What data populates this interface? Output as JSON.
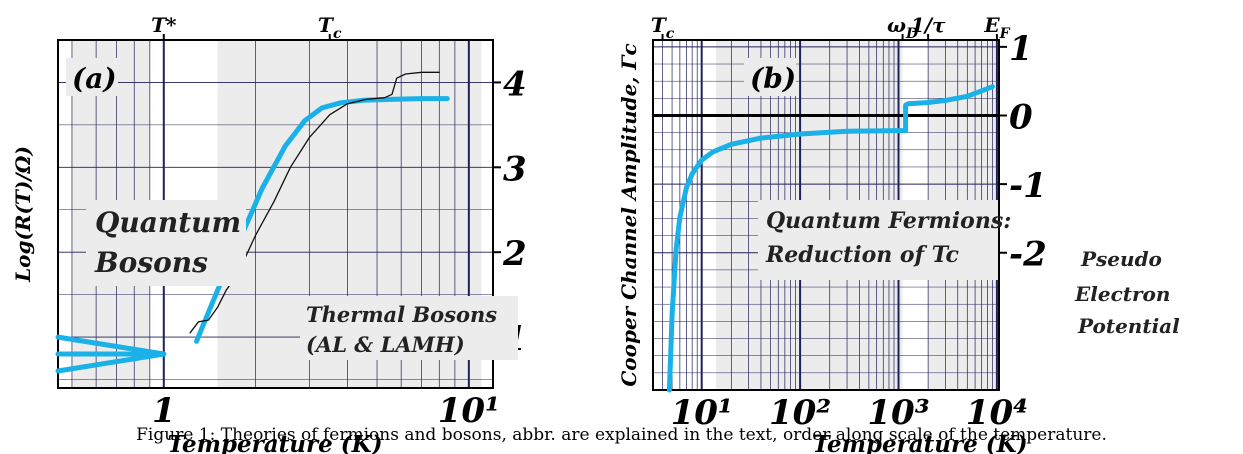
{
  "caption": "Figure 1: Theories of fermions and bosons, abbr. are explained in the text, order along scale of the temperature.",
  "colors": {
    "curve": "#1ab0e8",
    "shade": "#ececec",
    "grid": "#20205a",
    "axis": "#000000"
  },
  "chart_data": [
    {
      "type": "line",
      "panel_label": "(a)",
      "xlabel": "Temperature (K)",
      "ylabel": "Log(R(T)/Ω)",
      "xscale": "log",
      "xlim": [
        0.45,
        12
      ],
      "ylim": [
        0.4,
        4.5
      ],
      "x_tick_labels": [
        "1",
        "10¹"
      ],
      "x_tick_values": [
        1,
        10
      ],
      "y_tick_labels": [
        "1",
        "2",
        "3",
        "4"
      ],
      "y_tick_values": [
        1,
        2,
        3,
        4
      ],
      "top_markers": [
        {
          "label": "T*",
          "x": 1.0
        },
        {
          "label": "Tc",
          "x": 3.5
        }
      ],
      "region_labels": [
        {
          "text": [
            "Quantum",
            "Bosons"
          ]
        },
        {
          "text": [
            "Thermal Bosons",
            "(AL & LAMH)"
          ]
        }
      ],
      "shaded_ranges": [
        [
          0.5,
          0.9
        ],
        [
          1.5,
          11
        ]
      ],
      "grid": true,
      "series": [
        {
          "role": "fit",
          "x": [
            1.28,
            1.5,
            1.8,
            2.1,
            2.5,
            2.9,
            3.3,
            3.8,
            4.5,
            5.5,
            7.0,
            8.5
          ],
          "y": [
            0.95,
            1.55,
            2.2,
            2.75,
            3.25,
            3.55,
            3.7,
            3.76,
            3.79,
            3.8,
            3.81,
            3.81
          ]
        },
        {
          "role": "fan-line-1",
          "x": [
            0.45,
            1.0
          ],
          "y": [
            1.0,
            0.8
          ]
        },
        {
          "role": "fan-line-2",
          "x": [
            0.45,
            1.0
          ],
          "y": [
            0.8,
            0.8
          ]
        },
        {
          "role": "fan-line-3",
          "x": [
            0.45,
            1.0
          ],
          "y": [
            0.6,
            0.8
          ]
        },
        {
          "role": "data",
          "x": [
            1.22,
            1.3,
            1.4,
            1.5,
            1.6,
            1.75,
            2.0,
            2.3,
            2.6,
            3.0,
            3.5,
            4.0,
            4.6,
            5.3,
            5.6,
            5.8,
            6.2,
            7.0,
            8.0
          ],
          "y": [
            1.05,
            1.18,
            1.2,
            1.35,
            1.55,
            1.75,
            2.2,
            2.6,
            3.0,
            3.35,
            3.62,
            3.75,
            3.8,
            3.82,
            3.86,
            4.05,
            4.1,
            4.12,
            4.12
          ]
        }
      ]
    },
    {
      "type": "line",
      "panel_label": "(b)",
      "xlabel": "Temperature (K)",
      "ylabel": "Cooper Channel Amplitude, Γc",
      "xscale": "log",
      "xlim": [
        3.2,
        10500
      ],
      "ylim": [
        -4.0,
        1.1
      ],
      "x_tick_labels": [
        "10¹",
        "10²",
        "10³",
        "10⁴"
      ],
      "x_tick_values": [
        10,
        100,
        1000,
        10000
      ],
      "y_tick_labels": [
        "1",
        "0",
        "-1",
        "-2"
      ],
      "y_tick_values": [
        1,
        0,
        -1,
        -2
      ],
      "top_markers": [
        {
          "label": "Tc",
          "x": 4.0
        },
        {
          "label": "ωD",
          "x": 1100
        },
        {
          "label": "1/τ",
          "x": 2000
        },
        {
          "label": "EF",
          "x": 10000
        }
      ],
      "region_labels": [
        {
          "text": [
            "Quantum Fermions:",
            "Reduction of Tc"
          ]
        },
        {
          "text": [
            "Pseudo",
            "Electron",
            "Potential"
          ]
        }
      ],
      "shaded_ranges": [
        [
          14,
          1100
        ],
        [
          2000,
          10000
        ]
      ],
      "grid": true,
      "series": [
        {
          "role": "gamma",
          "x": [
            4.7,
            5.0,
            5.5,
            6.0,
            7.0,
            8.0,
            10,
            13,
            20,
            40,
            100,
            300,
            1000,
            1180
          ],
          "y": [
            -4.0,
            -2.9,
            -1.95,
            -1.48,
            -1.05,
            -0.85,
            -0.65,
            -0.53,
            -0.42,
            -0.33,
            -0.27,
            -0.23,
            -0.22,
            -0.22
          ]
        },
        {
          "role": "gamma",
          "x": [
            1180,
            1250,
            2000,
            3000,
            5000,
            7000,
            9000
          ],
          "y": [
            0.15,
            0.17,
            0.19,
            0.22,
            0.28,
            0.36,
            0.42
          ]
        }
      ]
    }
  ]
}
